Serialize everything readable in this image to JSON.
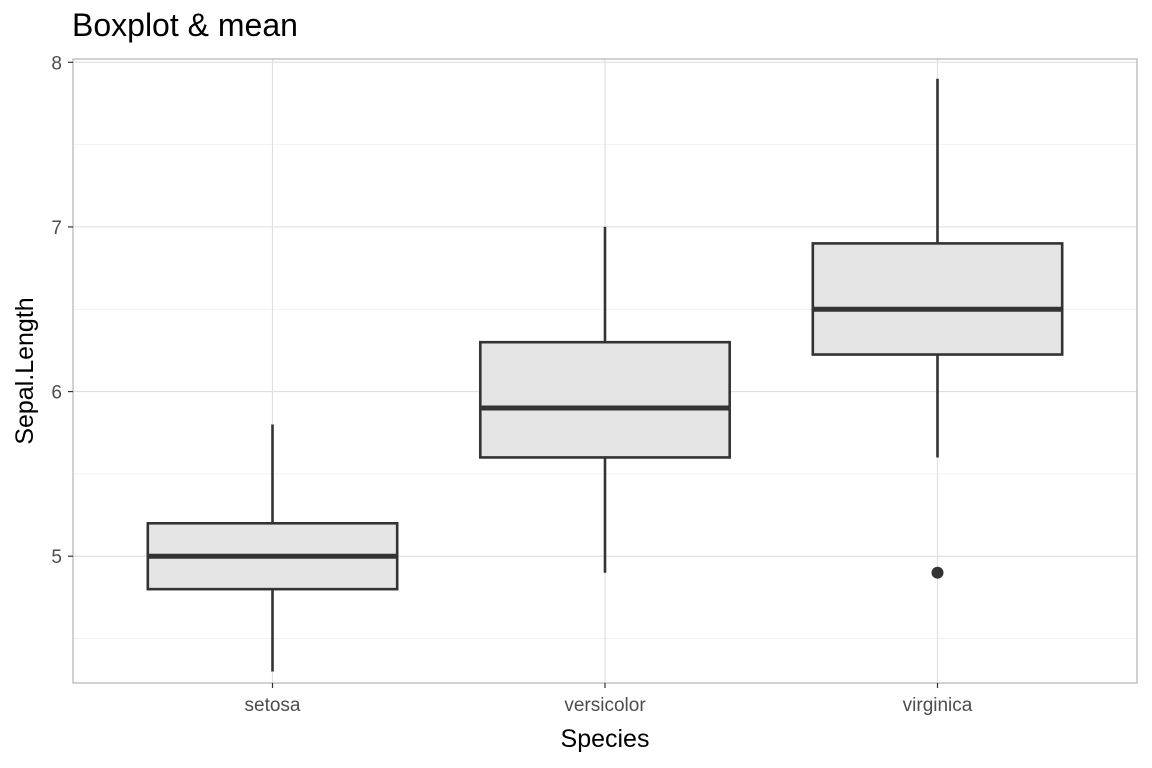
{
  "chart_data": {
    "type": "boxplot",
    "title": "Boxplot & mean",
    "xlabel": "Species",
    "ylabel": "Sepal.Length",
    "categories": [
      "setosa",
      "versicolor",
      "virginica"
    ],
    "ylim": [
      4.23,
      8.02
    ],
    "y_ticks": [
      5,
      6,
      7,
      8
    ],
    "y_minor_ticks": [
      4.5,
      5.5,
      6.5,
      7.5
    ],
    "grid": true,
    "boxes": [
      {
        "category": "setosa",
        "whisker_low": 4.3,
        "q1": 4.8,
        "median": 5.0,
        "q3": 5.2,
        "whisker_high": 5.8,
        "outliers": []
      },
      {
        "category": "versicolor",
        "whisker_low": 4.9,
        "q1": 5.6,
        "median": 5.9,
        "q3": 6.3,
        "whisker_high": 7.0,
        "outliers": []
      },
      {
        "category": "virginica",
        "whisker_low": 5.6,
        "q1": 6.225,
        "median": 6.5,
        "q3": 6.9,
        "whisker_high": 7.9,
        "outliers": [
          4.9
        ]
      }
    ],
    "colors": {
      "box_fill": "#e5e5e5",
      "box_stroke": "#333333",
      "grid": "#e0e0e0",
      "panel_border": "#b3b3b3"
    }
  }
}
